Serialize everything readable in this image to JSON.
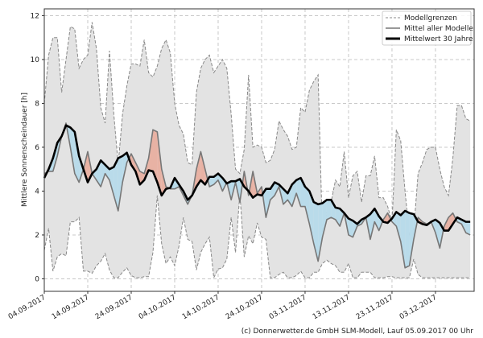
{
  "chart_data": {
    "type": "line",
    "title": "",
    "xlabel": "",
    "ylabel": "Mittlere Sonnenscheindauer [h]",
    "x_start": "04.09.2017",
    "x_step_days": 1,
    "xticks": [
      "04.09.2017",
      "14.09.2017",
      "24.09.2017",
      "04.10.2017",
      "14.10.2017",
      "24.10.2017",
      "03.11.2017",
      "13.11.2017",
      "23.11.2017",
      "03.12.2017"
    ],
    "yticks": [
      0,
      2,
      4,
      6,
      8,
      10,
      12
    ],
    "ylim": [
      -0.57,
      12.31
    ],
    "grid": true,
    "legend_placement": "top-right",
    "series": [
      {
        "name": "Modellgrenzen",
        "role": "upper",
        "values": [
          8.0,
          10.2,
          11.0,
          11.0,
          8.5,
          10.0,
          11.5,
          11.4,
          9.6,
          10.0,
          10.2,
          11.7,
          10.5,
          7.8,
          7.1,
          10.4,
          7.5,
          5.2,
          7.5,
          8.8,
          9.8,
          9.8,
          9.7,
          10.9,
          9.4,
          9.2,
          9.7,
          10.5,
          10.9,
          10.3,
          8.0,
          7.0,
          6.6,
          5.3,
          5.2,
          8.5,
          9.6,
          10.0,
          10.2,
          9.4,
          9.7,
          10.0,
          9.6,
          7.5,
          5.0,
          4.8,
          5.9,
          9.3,
          6.0,
          6.1,
          6.0,
          5.3,
          5.4,
          5.9,
          7.2,
          6.8,
          6.5,
          5.9,
          6.0,
          7.8,
          7.6,
          8.6,
          9.0,
          9.3,
          2.0,
          3.0,
          3.5,
          4.5,
          4.2,
          5.8,
          3.7,
          4.7,
          4.9,
          3.5,
          4.7,
          4.7,
          5.6,
          3.7,
          3.7,
          3.3,
          2.6,
          6.8,
          6.3,
          4.0,
          2.0,
          2.2,
          4.8,
          5.3,
          5.9,
          6.0,
          6.0,
          5.0,
          4.2,
          3.8,
          5.5,
          7.9,
          7.9,
          7.3,
          7.2
        ]
      },
      {
        "name": "Modellgrenzen",
        "role": "lower",
        "values": [
          1.3,
          2.3,
          0.35,
          1.0,
          1.15,
          1.05,
          2.6,
          2.6,
          2.8,
          0.35,
          0.35,
          0.25,
          0.6,
          0.8,
          1.15,
          0.4,
          0.05,
          0.05,
          0.3,
          0.5,
          0.15,
          0.05,
          0.05,
          0.1,
          0.1,
          1.2,
          3.8,
          1.6,
          0.7,
          1.0,
          0.6,
          1.5,
          2.8,
          1.8,
          1.7,
          0.4,
          1.2,
          1.6,
          1.9,
          0.05,
          0.45,
          0.5,
          0.9,
          2.8,
          1.2,
          3.9,
          1.0,
          1.96,
          1.6,
          2.55,
          1.9,
          1.8,
          0.05,
          0.05,
          0.2,
          0.3,
          0.05,
          0.05,
          0.15,
          0.35,
          0.05,
          0.05,
          0.3,
          0.3,
          0.7,
          0.85,
          0.7,
          0.6,
          0.3,
          0.3,
          0.7,
          0.05,
          0.05,
          0.3,
          0.3,
          0.3,
          0.05,
          0.05,
          0.05,
          0.1,
          0.1,
          0.05,
          0.05,
          0.05,
          0.05,
          0.9,
          0.2,
          0.05,
          0.05,
          0.05,
          0.05,
          0.05,
          0.05,
          0.05,
          0.05,
          0.05,
          0.05,
          0.05,
          0.05
        ]
      },
      {
        "name": "Mittel aller Modelle",
        "values": [
          4.8,
          4.9,
          4.9,
          5.6,
          6.5,
          7.1,
          6.0,
          4.8,
          4.4,
          5.0,
          5.8,
          4.8,
          4.5,
          4.2,
          4.8,
          4.5,
          3.8,
          3.1,
          4.4,
          5.3,
          5.7,
          5.3,
          4.9,
          4.8,
          5.5,
          6.8,
          6.7,
          5.0,
          4.2,
          4.1,
          4.1,
          4.2,
          3.8,
          3.4,
          3.8,
          5.0,
          5.8,
          5.0,
          4.2,
          4.3,
          4.5,
          4.0,
          4.4,
          3.6,
          4.4,
          3.5,
          4.9,
          3.8,
          4.9,
          3.9,
          4.2,
          2.8,
          3.6,
          3.8,
          4.2,
          3.4,
          3.6,
          3.3,
          3.9,
          3.3,
          3.3,
          2.5,
          1.6,
          0.8,
          1.9,
          2.7,
          2.8,
          2.7,
          2.4,
          3.0,
          2.0,
          1.9,
          2.4,
          2.5,
          2.8,
          1.8,
          2.6,
          2.2,
          2.7,
          3.0,
          2.6,
          2.4,
          1.7,
          0.5,
          0.6,
          1.8,
          2.8,
          2.6,
          2.5,
          2.6,
          2.1,
          1.4,
          2.4,
          2.8,
          3.0,
          2.6,
          2.5,
          2.1,
          2.0
        ]
      },
      {
        "name": "Mittelwert 30 Jahre",
        "values": [
          4.6,
          5.0,
          5.5,
          6.2,
          6.5,
          7.0,
          6.9,
          6.7,
          5.6,
          5.0,
          4.4,
          4.8,
          5.0,
          5.4,
          5.2,
          5.0,
          5.1,
          5.5,
          5.6,
          5.75,
          5.2,
          4.9,
          4.3,
          4.5,
          4.95,
          4.9,
          4.4,
          3.8,
          4.1,
          4.15,
          4.6,
          4.3,
          4.0,
          3.6,
          3.8,
          4.2,
          4.5,
          4.3,
          4.65,
          4.65,
          4.8,
          4.6,
          4.35,
          4.45,
          4.45,
          4.55,
          4.2,
          4.0,
          3.7,
          3.85,
          3.8,
          4.1,
          4.1,
          4.4,
          4.3,
          4.1,
          3.9,
          4.3,
          4.5,
          4.6,
          4.2,
          4.0,
          3.5,
          3.4,
          3.45,
          3.6,
          3.6,
          3.25,
          3.2,
          3.0,
          2.75,
          2.65,
          2.5,
          2.7,
          2.8,
          2.95,
          3.2,
          2.85,
          2.6,
          2.55,
          2.75,
          3.05,
          2.9,
          3.1,
          3.0,
          2.95,
          2.6,
          2.5,
          2.45,
          2.6,
          2.7,
          2.55,
          2.2,
          2.2,
          2.5,
          2.8,
          2.7,
          2.6,
          2.6
        ]
      }
    ],
    "colors": {
      "band": "#e3e3e3",
      "band_edge": "#888888",
      "above": "#e8b2a4",
      "below": "#b9dbea",
      "model_mean": "#777777",
      "clim_mean": "#000000"
    },
    "legend": [
      "Modellgrenzen",
      "Mittel aller Modelle",
      "Mittelwert 30 Jahre"
    ]
  },
  "footer": "(c) Donnerwetter.de GmbH SLM-Modell, Lauf 05.09.2017 00 Uhr"
}
